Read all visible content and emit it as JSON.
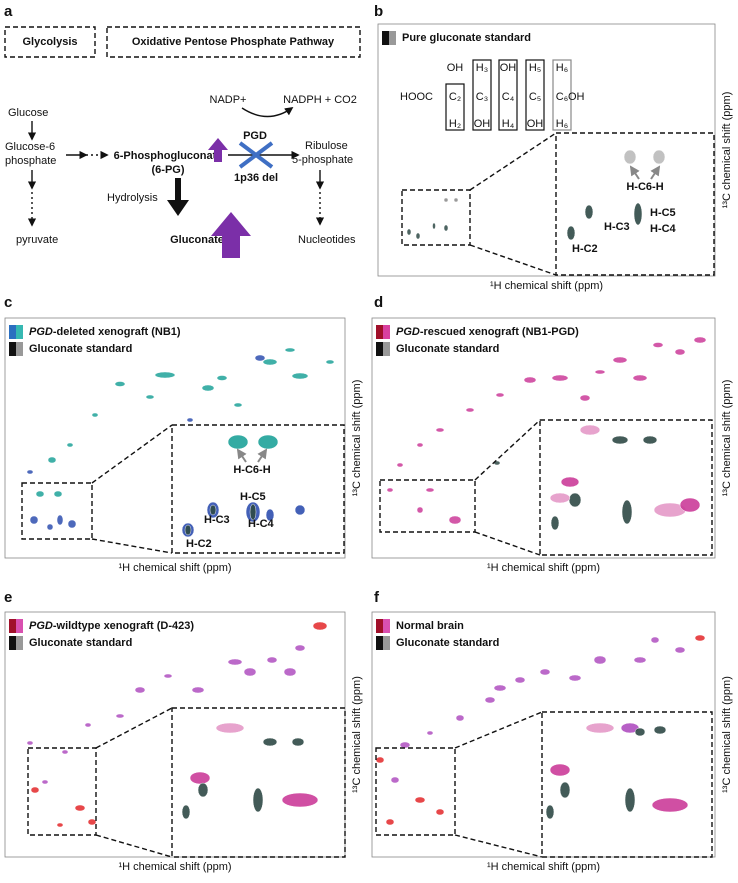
{
  "panel_a": {
    "letter": "a",
    "boxes": [
      "Glycolysis",
      "Oxidative Pentose Phosphate Pathway"
    ],
    "glucose": "Glucose",
    "g6p": [
      "Glucose-6",
      "phosphate"
    ],
    "pyruvate": "pyruvate",
    "pg6": [
      "6-Phosphogluconate",
      "(6-PG)"
    ],
    "hydrolysis": "Hydrolysis",
    "gluconate": "Gluconate",
    "nadp": "NADP+",
    "nadph": "NADPH + CO2",
    "pgd": "PGD",
    "deletion": "1p36 del",
    "ribulose": [
      "Ribulose",
      "5-phosphate"
    ],
    "nucleotides": "Nucleotides"
  },
  "panel_b": {
    "letter": "b",
    "legend": [
      {
        "text": "Pure gluconate standard"
      }
    ],
    "structure": {
      "acid": "HOOC",
      "carbons": [
        "C₂",
        "C₃",
        "C₄",
        "C₅",
        "C₆"
      ],
      "top": [
        "OH",
        "H₃",
        "OH",
        "H₅",
        "H₆"
      ],
      "bottom": [
        "H₂",
        "OH",
        "H₄",
        "OH",
        "H₆"
      ],
      "end": "OH"
    },
    "peak_labels": [
      "H-C6-H",
      "H-C3",
      "H-C5",
      "H-C4",
      "H-C2"
    ],
    "x_axis_label": "¹H chemical shift (ppm)",
    "y_axis_label": "¹³C chemical shift (ppm)"
  },
  "panel_c": {
    "letter": "c",
    "legend": [
      {
        "italic": "PGD",
        "text": "-deleted xenograft (NB1)"
      },
      {
        "text": "Gluconate standard"
      }
    ],
    "peak_labels": [
      "H-C6-H",
      "H-C3",
      "H-C5",
      "H-C4",
      "H-C2"
    ],
    "x_axis_label": "¹H chemical shift (ppm)",
    "y_axis_label": "¹³C chemical shift (ppm)"
  },
  "panel_d": {
    "letter": "d",
    "legend": [
      {
        "italic": "PGD",
        "text": "-rescued xenograft (NB1-PGD)"
      },
      {
        "text": "Gluconate standard"
      }
    ],
    "x_axis_label": "¹H chemical shift (ppm)",
    "y_axis_label": "¹³C chemical shift (ppm)"
  },
  "panel_e": {
    "letter": "e",
    "legend": [
      {
        "italic": "PGD",
        "text": "-wildtype xenograft (D-423)"
      },
      {
        "text": "Gluconate standard"
      }
    ],
    "x_axis_label": "¹H chemical shift (ppm)",
    "y_axis_label": "¹³C chemical shift (ppm)"
  },
  "panel_f": {
    "letter": "f",
    "legend": [
      {
        "text": "Normal brain"
      },
      {
        "text": "Gluconate standard"
      }
    ],
    "x_axis_label": "¹H chemical shift (ppm)",
    "y_axis_label": "¹³C chemical shift (ppm)"
  }
}
